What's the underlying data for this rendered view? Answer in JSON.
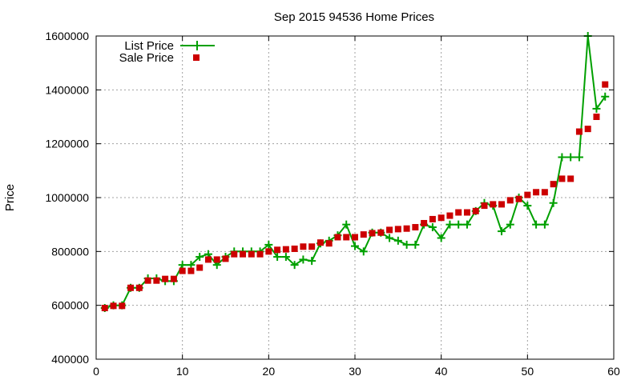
{
  "chart_data": {
    "type": "line",
    "title": "Sep 2015 94536 Home Prices",
    "xlabel": "",
    "ylabel": "Price",
    "xlim": [
      0,
      60
    ],
    "ylim": [
      400000,
      1600000
    ],
    "xticks": [
      0,
      10,
      20,
      30,
      40,
      50,
      60
    ],
    "yticks": [
      400000,
      600000,
      800000,
      1000000,
      1200000,
      1400000,
      1600000
    ],
    "x_tick_labels": [
      "0",
      "10",
      "20",
      "30",
      "40",
      "50",
      "60"
    ],
    "y_tick_labels": [
      "400000",
      "600000",
      "800000",
      "1000000",
      "1200000",
      "1400000",
      "1600000"
    ],
    "grid": true,
    "legend_position": "top-left",
    "x": [
      1,
      2,
      3,
      4,
      5,
      6,
      7,
      8,
      9,
      10,
      11,
      12,
      13,
      14,
      15,
      16,
      17,
      18,
      19,
      20,
      21,
      22,
      23,
      24,
      25,
      26,
      27,
      28,
      29,
      30,
      31,
      32,
      33,
      34,
      35,
      36,
      37,
      38,
      39,
      40,
      41,
      42,
      43,
      44,
      45,
      46,
      47,
      48,
      49,
      50,
      51,
      52,
      53,
      54,
      55,
      56,
      57,
      58,
      59
    ],
    "series": [
      {
        "name": "List Price",
        "style": "line-with-plus-markers",
        "color": "#00a000",
        "values": [
          590000,
          600000,
          600000,
          665000,
          665000,
          700000,
          700000,
          690000,
          690000,
          750000,
          750000,
          780000,
          790000,
          750000,
          780000,
          800000,
          800000,
          800000,
          800000,
          825000,
          780000,
          780000,
          750000,
          770000,
          765000,
          830000,
          840000,
          860000,
          900000,
          820000,
          800000,
          870000,
          870000,
          850000,
          840000,
          825000,
          825000,
          900000,
          890000,
          850000,
          900000,
          900000,
          900000,
          950000,
          980000,
          970000,
          875000,
          900000,
          1000000,
          970000,
          900000,
          900000,
          980000,
          1150000,
          1150000,
          1150000,
          1600000,
          1330000,
          1375000
        ]
      },
      {
        "name": "Sale Price",
        "style": "square-markers",
        "color": "#cc0000",
        "values": [
          590000,
          598000,
          598000,
          665000,
          665000,
          692000,
          692000,
          698000,
          698000,
          728000,
          728000,
          740000,
          770000,
          770000,
          773000,
          790000,
          790000,
          790000,
          790000,
          800000,
          806000,
          808000,
          810000,
          818000,
          818000,
          833000,
          830000,
          853000,
          853000,
          853000,
          863000,
          868000,
          870000,
          880000,
          883000,
          885000,
          890000,
          905000,
          920000,
          925000,
          933000,
          945000,
          945000,
          950000,
          970000,
          975000,
          975000,
          990000,
          995000,
          1010000,
          1020000,
          1020000,
          1050000,
          1070000,
          1070000,
          1245000,
          1255000,
          1300000,
          1420000
        ]
      }
    ]
  },
  "colors": {
    "list_price": "#00a000",
    "sale_price": "#cc0000",
    "grid": "#a0a0a0"
  }
}
